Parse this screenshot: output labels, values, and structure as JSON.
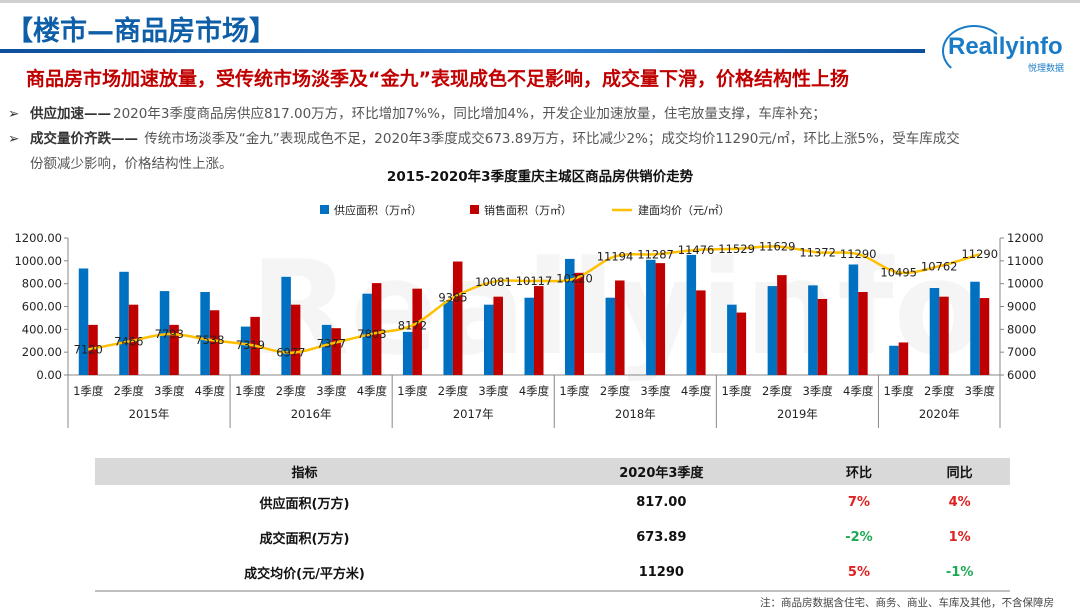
{
  "header": {
    "title": "【楼市—商品房市场】",
    "logo_text": "Reallyinfo",
    "logo_sub": "悦理数据"
  },
  "headline": "商品房市场加速放量，受传统市场淡季及“金九”表现成色不足影响，成交量下滑，价格结构性上扬",
  "bullets": [
    {
      "marker": "➢",
      "bold": "供应加速——",
      "text": "2020年3季度商品房供应817.00万方，环比增加7%%，同比增加4%，开发企业加速放量，住宅放量支撑，车库补充；"
    },
    {
      "marker": "➢",
      "bold": "成交量价齐跌——",
      "text": " 传统市场淡季及“金九”表现成色不足，2020年3季度成交673.89万方，环比减少2%；成交均价11290元/㎡，环比上涨5%，受车库成交"
    },
    {
      "marker": "",
      "bold": "",
      "text": "份额减少影响，价格结构性上涨。"
    }
  ],
  "chart_data": {
    "type": "bar",
    "title": "2015-2020年3季度重庆主城区商品房供销价走势",
    "categories": [
      "1季度",
      "2季度",
      "3季度",
      "4季度",
      "1季度",
      "2季度",
      "3季度",
      "4季度",
      "1季度",
      "2季度",
      "3季度",
      "4季度",
      "1季度",
      "2季度",
      "3季度",
      "4季度",
      "1季度",
      "2季度",
      "3季度",
      "4季度",
      "1季度",
      "2季度",
      "3季度"
    ],
    "groups": [
      {
        "label": "2015年",
        "count": 4
      },
      {
        "label": "2016年",
        "count": 4
      },
      {
        "label": "2017年",
        "count": 4
      },
      {
        "label": "2018年",
        "count": 4
      },
      {
        "label": "2019年",
        "count": 4
      },
      {
        "label": "2020年",
        "count": 3
      }
    ],
    "series": [
      {
        "name": "供应面积（万㎡）",
        "type": "bar",
        "axis": "left",
        "color": "#0070c0",
        "values": [
          933,
          904,
          735,
          727,
          424,
          860,
          439,
          712,
          378,
          648,
          616,
          677,
          1017,
          677,
          1009,
          1052,
          616,
          779,
          785,
          968,
          256,
          762,
          817
        ]
      },
      {
        "name": "销售面积（万㎡）",
        "type": "bar",
        "axis": "left",
        "color": "#c00000",
        "values": [
          439,
          616,
          439,
          567,
          509,
          616,
          410,
          805,
          756,
          994,
          686,
          779,
          895,
          828,
          980,
          741,
          547,
          875,
          666,
          727,
          285,
          686,
          673.89
        ]
      },
      {
        "name": "建面均价（元/㎡）",
        "type": "line",
        "axis": "right",
        "color": "#ffc000",
        "values": [
          7120,
          7466,
          7793,
          7538,
          7319,
          6977,
          7377,
          7803,
          8172,
          9385,
          10081,
          10117,
          10220,
          11194,
          11287,
          11476,
          11529,
          11629,
          11372,
          11290,
          10495,
          10762,
          11290
        ]
      }
    ],
    "left_axis": {
      "range": [
        0,
        1200
      ],
      "ticks": [
        "0.00",
        "200.00",
        "400.00",
        "600.00",
        "800.00",
        "1000.00",
        "1200.00"
      ]
    },
    "right_axis": {
      "range": [
        6000,
        12000
      ],
      "ticks": [
        "6000",
        "7000",
        "8000",
        "9000",
        "10000",
        "11000",
        "12000"
      ]
    },
    "legend_position": "top",
    "grid": false
  },
  "table": {
    "headers": [
      "指标",
      "2020年3季度",
      "环比",
      "同比"
    ],
    "rows": [
      {
        "label": "供应面积(万方)",
        "value": "817.00",
        "qoq": "7%",
        "qoq_dir": "up",
        "yoy": "4%",
        "yoy_dir": "up"
      },
      {
        "label": "成交面积(万方)",
        "value": "673.89",
        "qoq": "-2%",
        "qoq_dir": "down",
        "yoy": "1%",
        "yoy_dir": "up"
      },
      {
        "label": "成交均价(元/平方米)",
        "value": "11290",
        "qoq": "5%",
        "qoq_dir": "up",
        "yoy": "-1%",
        "yoy_dir": "down"
      }
    ]
  },
  "note": "注：商品房数据含住宅、商务、商业、车库及其他，不含保障房"
}
